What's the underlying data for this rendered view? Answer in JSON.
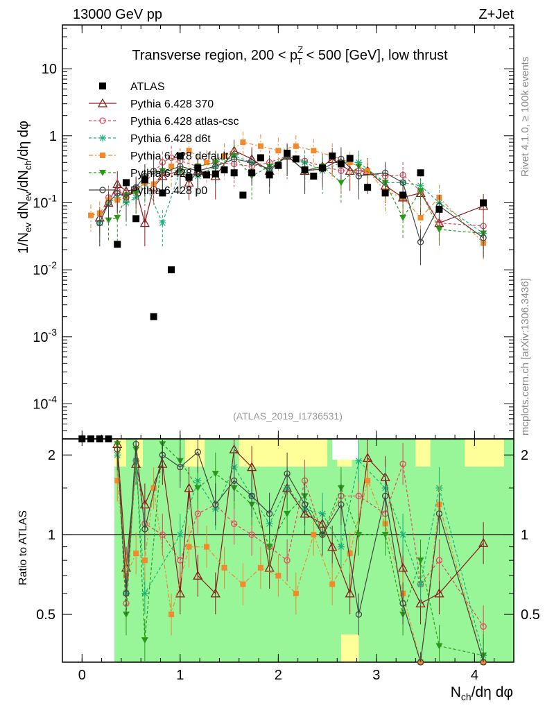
{
  "header": {
    "left": "13000 GeV pp",
    "right": "Z+Jet"
  },
  "side": {
    "top": "Rivet 4.1.0, ≥ 100k events",
    "bottom": "mcplots.cern.ch [arXiv:1306.3436]"
  },
  "chart_data": {
    "type": "scatter",
    "title": "Transverse region, 200 < pT^Z < 500 [GeV], low thrust",
    "title_parts": {
      "pre": "Transverse region, 200 < p",
      "sup": "Z",
      "sub": "T",
      "post": " < 500 [GeV], low thrust"
    },
    "watermark": "(ATLAS_2019_I1736531)",
    "ylabel": "1/Nev dNev/dNch/dη dφ",
    "ylabel_parts": {
      "a": "1/N",
      "a_sub": "ev",
      "b": " dN",
      "b_sub": "ev",
      "c": "/dN",
      "c_sub": "ch",
      "d": "/dη dφ"
    },
    "xlabel": "Nch/dη dφ",
    "xlabel_parts": {
      "a": "N",
      "a_sub": "ch",
      "b": "/dη dφ"
    },
    "ratio_ylabel": "Ratio to ATLAS",
    "xlim": [
      -0.2,
      4.4
    ],
    "ylim": [
      3e-05,
      45
    ],
    "ratio_ylim": [
      0.33,
      2.3
    ],
    "x_ticks": [
      0,
      1,
      2,
      3,
      4
    ],
    "x_tick_labels": [
      "0",
      "1",
      "2",
      "3",
      "4"
    ],
    "y_ticks": [
      0.0001,
      0.001,
      0.01,
      0.1,
      1,
      10
    ],
    "y_tick_labels": [
      "10^-4",
      "10^-3",
      "10^-2",
      "10^-1",
      "1",
      "10"
    ],
    "ratio_ticks": [
      0.5,
      1,
      2
    ],
    "ratio_tick_labels": [
      "0.5",
      "1",
      "2"
    ],
    "legend": [
      {
        "name": "ATLAS",
        "color": "#000000",
        "marker": "square",
        "dash": ""
      },
      {
        "name": "Pythia 6.428 370",
        "color": "#8b1a1a",
        "marker": "triangle",
        "dash": ""
      },
      {
        "name": "Pythia 6.428 atlas-csc",
        "color": "#e8455c",
        "marker": "circle-open",
        "dash": "4,3"
      },
      {
        "name": "Pythia 6.428 d6t",
        "color": "#18b07a",
        "marker": "star",
        "dash": "4,3"
      },
      {
        "name": "Pythia 6.428 default",
        "color": "#f08a2c",
        "marker": "square-filled",
        "dash": "6,3,2,3"
      },
      {
        "name": "Pythia 6.428 dw",
        "color": "#2a9a1a",
        "marker": "triangle-down",
        "dash": "4,3"
      },
      {
        "name": "Pythia 6.428 p0",
        "color": "#444444",
        "marker": "circle-open",
        "dash": ""
      }
    ],
    "x": [
      0.0,
      0.09,
      0.18,
      0.27,
      0.36,
      0.45,
      0.55,
      0.64,
      0.73,
      0.82,
      0.91,
      1.0,
      1.09,
      1.18,
      1.27,
      1.36,
      1.45,
      1.55,
      1.64,
      1.73,
      1.82,
      1.91,
      2.0,
      2.09,
      2.18,
      2.27,
      2.36,
      2.45,
      2.55,
      2.64,
      2.73,
      2.91,
      3.09,
      3.27,
      3.45,
      3.64,
      4.09
    ],
    "atlas": [
      3e-05,
      3e-05,
      3e-05,
      3e-05,
      0.024,
      0.2,
      0.058,
      0.22,
      0.002,
      0.14,
      0.01,
      0.5,
      0.24,
      0.33,
      0.26,
      0.27,
      0.31,
      0.28,
      0.13,
      0.28,
      0.47,
      0.26,
      0.36,
      0.55,
      0.45,
      0.31,
      0.25,
      0.33,
      0.5,
      0.38,
      0.46,
      0.17,
      0.14,
      0.13,
      0.28,
      0.08,
      0.1
    ],
    "series": [
      {
        "name": "Pythia 6.428 370",
        "x": [
          0.18,
          0.27,
          0.36,
          0.45,
          0.55,
          0.64,
          0.73,
          0.82,
          1.0,
          1.09,
          1.18,
          1.36,
          1.55,
          1.73,
          1.91,
          2.09,
          2.27,
          2.45,
          2.55,
          2.73,
          2.91,
          3.09,
          3.27,
          3.45,
          3.64,
          4.09
        ],
        "values": [
          0.06,
          0.1,
          0.19,
          0.15,
          0.16,
          0.05,
          0.17,
          0.25,
          0.3,
          0.2,
          0.3,
          0.25,
          0.6,
          0.45,
          0.3,
          0.5,
          0.3,
          0.35,
          0.45,
          0.3,
          0.3,
          0.18,
          0.12,
          0.14,
          0.05,
          0.09
        ],
        "ratio": [
          null,
          null,
          2.2,
          0.75,
          1.85,
          1.3,
          null,
          1.85,
          0.6,
          1.5,
          0.7,
          0.6,
          2.1,
          1.8,
          0.75,
          1.5,
          1.2,
          1.1,
          0.9,
          0.6,
          1.95,
          1.65,
          0.75,
          0.55,
          0.6,
          0.93
        ]
      },
      {
        "name": "Pythia 6.428 atlas-csc",
        "x": [
          0.27,
          0.36,
          0.45,
          0.55,
          0.64,
          0.82,
          0.91,
          1.0,
          1.18,
          1.36,
          1.55,
          1.73,
          1.91,
          2.09,
          2.27,
          2.45,
          2.64,
          2.82,
          3.09,
          3.27,
          3.45,
          3.64,
          4.09
        ],
        "values": [
          0.12,
          0.15,
          0.13,
          0.15,
          0.2,
          0.4,
          0.47,
          0.42,
          0.35,
          0.4,
          0.38,
          0.35,
          0.4,
          0.5,
          0.42,
          0.35,
          0.3,
          0.3,
          0.25,
          0.26,
          0.15,
          0.05,
          0.045
        ],
        "ratio": [
          null,
          2.1,
          0.55,
          1.9,
          1.1,
          1.0,
          null,
          0.8,
          1.2,
          1.3,
          1.1,
          1.0,
          0.9,
          0.8,
          1.6,
          1.0,
          1.4,
          1.4,
          1.2,
          1.85,
          0.65,
          0.8,
          0.45
        ]
      },
      {
        "name": "Pythia 6.428 d6t",
        "x": [
          0.18,
          0.27,
          0.36,
          0.45,
          0.55,
          0.64,
          0.82,
          1.0,
          1.18,
          1.36,
          1.55,
          1.73,
          1.91,
          2.09,
          2.27,
          2.45,
          2.64,
          2.82,
          3.09,
          3.27,
          3.45,
          3.64,
          4.09
        ],
        "values": [
          0.05,
          0.1,
          0.12,
          0.1,
          0.12,
          0.2,
          0.05,
          0.3,
          0.25,
          0.35,
          0.5,
          0.4,
          0.3,
          0.5,
          0.4,
          0.3,
          0.4,
          0.4,
          0.2,
          0.2,
          0.18,
          0.1,
          0.035
        ],
        "ratio": [
          null,
          null,
          2.0,
          0.6,
          1.9,
          0.6,
          null,
          1.0,
          1.6,
          1.25,
          1.8,
          1.4,
          1.1,
          1.5,
          1.25,
          1.2,
          0.9,
          1.9,
          1.5,
          1.0,
          0.65,
          1.5,
          0.35
        ]
      },
      {
        "name": "Pythia 6.428 default",
        "x": [
          0.09,
          0.18,
          0.27,
          0.36,
          0.45,
          0.55,
          0.64,
          0.73,
          0.91,
          1.09,
          1.27,
          1.45,
          1.64,
          1.82,
          2.0,
          2.18,
          2.36,
          2.55,
          2.73,
          2.91,
          3.09,
          3.27,
          3.45,
          3.64,
          4.09
        ],
        "values": [
          0.065,
          0.07,
          0.11,
          0.11,
          0.12,
          0.15,
          0.2,
          0.19,
          0.35,
          0.6,
          0.4,
          0.5,
          0.8,
          0.7,
          0.6,
          0.7,
          0.6,
          0.5,
          0.4,
          0.3,
          0.15,
          0.12,
          0.06,
          0.12,
          0.025
        ],
        "ratio": [
          null,
          null,
          null,
          1.6,
          0.7,
          0.85,
          0.8,
          1.5,
          0.5,
          0.9,
          0.9,
          0.75,
          0.65,
          0.75,
          0.7,
          0.6,
          1.0,
          0.65,
          0.85,
          1.6,
          1.1,
          0.6,
          0.3,
          1.3,
          0.28
        ]
      },
      {
        "name": "Pythia 6.428 dw",
        "x": [
          0.27,
          0.36,
          0.45,
          0.55,
          0.64,
          0.82,
          1.0,
          1.18,
          1.36,
          1.55,
          1.73,
          1.91,
          2.09,
          2.27,
          2.45,
          2.64,
          2.82,
          3.09,
          3.27,
          3.45,
          3.64,
          4.09
        ],
        "values": [
          0.055,
          0.06,
          0.13,
          0.14,
          0.24,
          0.3,
          0.3,
          0.35,
          0.4,
          0.5,
          0.25,
          0.35,
          0.5,
          0.3,
          0.35,
          0.2,
          0.35,
          0.2,
          0.06,
          0.15,
          0.04,
          0.035
        ],
        "ratio": [
          null,
          2.2,
          0.5,
          2.1,
          0.4,
          2.2,
          1.9,
          1.5,
          1.7,
          1.5,
          1.3,
          0.9,
          1.2,
          1.4,
          1.0,
          1.5,
          1.0,
          1.0,
          0.5,
          0.8,
          0.38,
          0.35
        ]
      },
      {
        "name": "Pythia 6.428 p0",
        "x": [
          0.18,
          0.27,
          0.36,
          0.45,
          0.55,
          0.64,
          0.73,
          0.82,
          1.0,
          1.18,
          1.36,
          1.55,
          1.73,
          1.91,
          2.09,
          2.27,
          2.45,
          2.64,
          2.82,
          3.09,
          3.27,
          3.45,
          3.64,
          4.09
        ],
        "values": [
          0.05,
          0.1,
          0.14,
          0.12,
          0.17,
          0.25,
          0.3,
          0.28,
          0.35,
          0.3,
          0.35,
          0.45,
          0.4,
          0.32,
          0.5,
          0.3,
          0.32,
          0.45,
          0.25,
          0.28,
          0.2,
          0.026,
          0.09,
          0.03
        ],
        "ratio": [
          null,
          null,
          2.1,
          0.6,
          2.2,
          1.05,
          null,
          2.0,
          1.8,
          2.05,
          1.3,
          1.6,
          1.4,
          1.2,
          1.7,
          1.3,
          1.0,
          1.3,
          0.5,
          1.4,
          0.55,
          0.3,
          1.2,
          0.3
        ]
      }
    ]
  }
}
